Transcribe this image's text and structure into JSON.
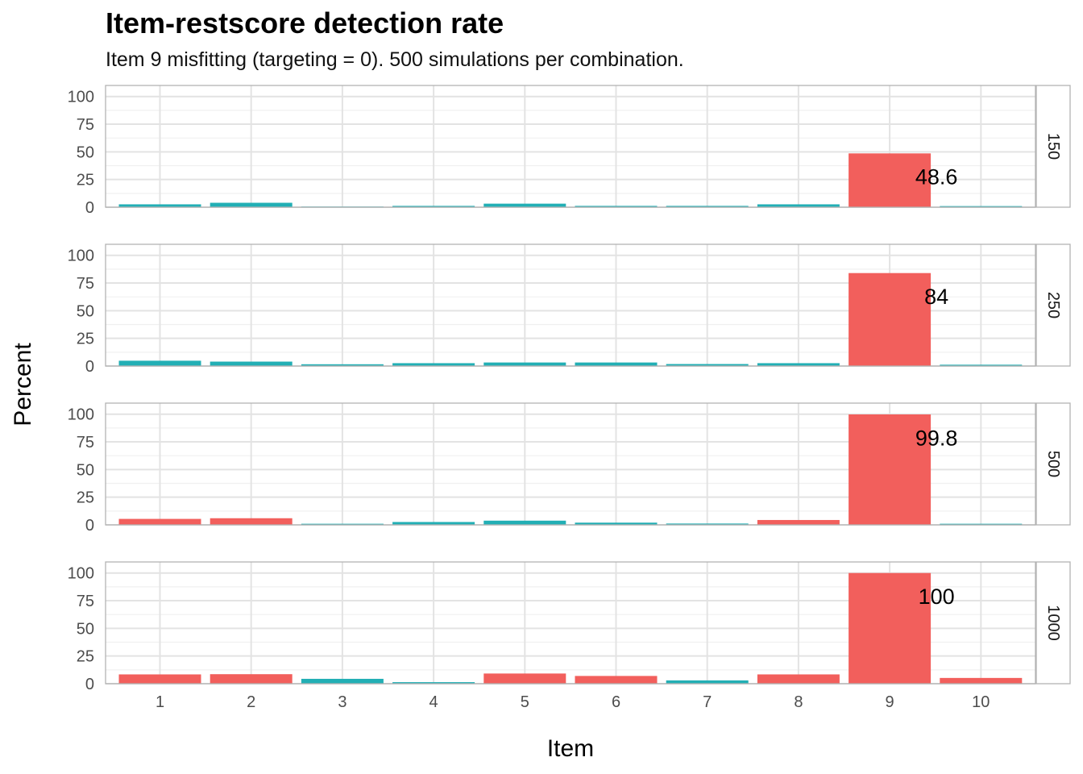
{
  "chart_data": {
    "type": "bar",
    "title": "Item-restscore detection rate",
    "subtitle": "Item 9 misfitting (targeting = 0). 500 simulations per combination.",
    "xlabel": "Item",
    "ylabel": "Percent",
    "ylim": [
      0,
      110
    ],
    "yticks": [
      0,
      25,
      50,
      75,
      100
    ],
    "categories": [
      "1",
      "2",
      "3",
      "4",
      "5",
      "6",
      "7",
      "8",
      "9",
      "10"
    ],
    "colors": {
      "flagged": "#F25F5C",
      "not_flagged": "#22AFB5"
    },
    "panels": [
      {
        "facet": "150",
        "values": [
          2.6,
          4.0,
          0.6,
          1.2,
          3.2,
          1.2,
          1.2,
          2.6,
          48.6,
          1.0
        ],
        "flagged": [
          false,
          false,
          false,
          false,
          false,
          false,
          false,
          false,
          true,
          false
        ],
        "label_text": "48.6"
      },
      {
        "facet": "250",
        "values": [
          4.8,
          4.0,
          1.6,
          2.6,
          3.2,
          3.2,
          1.8,
          2.6,
          84.0,
          1.2
        ],
        "flagged": [
          false,
          false,
          false,
          false,
          false,
          false,
          false,
          false,
          true,
          false
        ],
        "label_text": "84"
      },
      {
        "facet": "500",
        "values": [
          5.4,
          6.0,
          1.0,
          2.6,
          3.8,
          2.0,
          1.2,
          4.4,
          99.8,
          1.0
        ],
        "flagged": [
          true,
          true,
          false,
          false,
          false,
          false,
          false,
          true,
          true,
          false
        ],
        "label_text": "99.8"
      },
      {
        "facet": "1000",
        "values": [
          8.4,
          8.6,
          4.4,
          1.4,
          9.2,
          7.0,
          3.0,
          8.4,
          100.0,
          5.2
        ],
        "flagged": [
          true,
          true,
          false,
          false,
          true,
          true,
          false,
          true,
          true,
          true
        ],
        "label_text": "100"
      }
    ]
  }
}
